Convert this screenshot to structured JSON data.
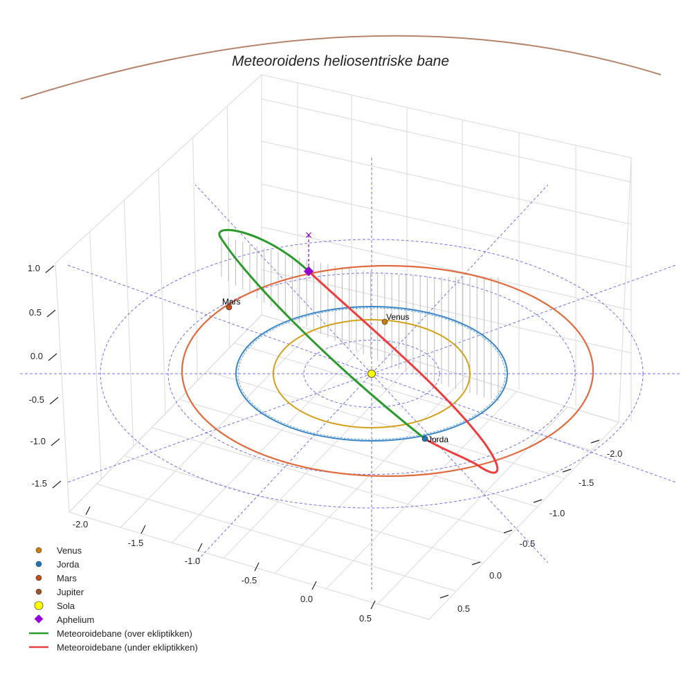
{
  "chart_data": {
    "type": "scatter-3d",
    "title": "Meteoroidens heliosentriske bane",
    "x_ticks": [
      "-2.0",
      "-1.5",
      "-1.0",
      "-0.5",
      "0.0",
      "0.5"
    ],
    "y_ticks": [
      "-2.0",
      "-1.5",
      "-1.0",
      "-0.5",
      "0.0",
      "0.5"
    ],
    "z_ticks": [
      "-1.5",
      "-1.0",
      "-0.5",
      "0.0",
      "0.5",
      "1.0"
    ],
    "planets": [
      {
        "name": "Venus",
        "label": "Venus",
        "orbit_radius_au": 0.72,
        "color": "#d4a017",
        "marker_color": "#c87f0a"
      },
      {
        "name": "Jorda",
        "label": "Jorda",
        "orbit_radius_au": 1.0,
        "color": "#3a85c8",
        "marker_color": "#1f77b4"
      },
      {
        "name": "Mars",
        "label": "Mars",
        "orbit_radius_au": 1.52,
        "color": "#e06a3c",
        "marker_color": "#c0501e"
      },
      {
        "name": "Jupiter",
        "label": "",
        "orbit_radius_au": 5.2,
        "color": "#b5836a",
        "marker_color": "#a0522d"
      }
    ],
    "sun": {
      "name": "Sola",
      "color": "#ffff00"
    },
    "aphelion": {
      "name": "Aphelium",
      "color": "#9400d3"
    },
    "orbit_segments": [
      {
        "name": "Meteoroidebane (over ekliptikken)",
        "color": "#2a9a2a"
      },
      {
        "name": "Meteoroidebane (under ekliptikken)",
        "color": "#ee3b3b"
      }
    ],
    "reference_grid": {
      "rings_au": [
        0.5,
        1.0,
        1.5,
        2.0
      ],
      "color": "#5555ee",
      "style": "dashed"
    }
  },
  "legend": {
    "items": [
      {
        "label": "Venus",
        "kind": "dot",
        "color": "#c87f0a"
      },
      {
        "label": "Jorda",
        "kind": "dot",
        "color": "#1f77b4"
      },
      {
        "label": "Mars",
        "kind": "dot",
        "color": "#c0501e"
      },
      {
        "label": "Jupiter",
        "kind": "dot",
        "color": "#a0522d"
      },
      {
        "label": "Sola",
        "kind": "sun",
        "color": "#ffff00"
      },
      {
        "label": "Aphelium",
        "kind": "diamond",
        "color": "#9400d3"
      },
      {
        "label": "Meteoroidebane (over ekliptikken)",
        "kind": "line",
        "color": "#2a9a2a"
      },
      {
        "label": "Meteoroidebane (under ekliptikken)",
        "kind": "line",
        "color": "#ee3b3b"
      }
    ]
  }
}
